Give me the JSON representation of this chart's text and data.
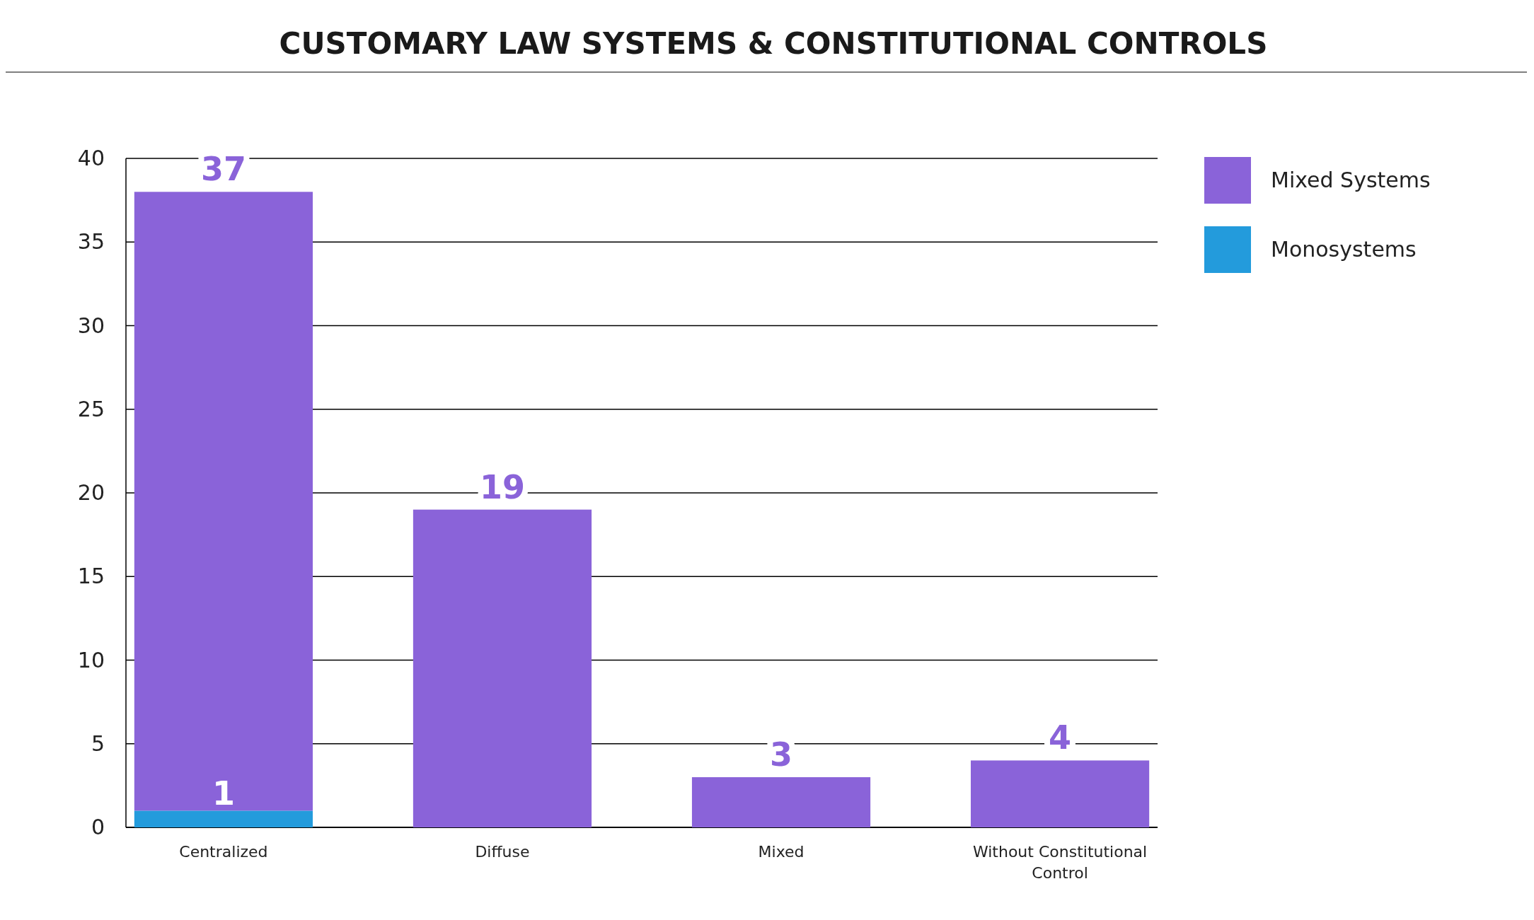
{
  "chart_data": {
    "type": "bar",
    "title": "CUSTOMARY LAW SYSTEMS & CONSTITUTIONAL CONTROLS",
    "categories": [
      "Centralized",
      "Diffuse",
      "Mixed",
      "Without Constitutional Control"
    ],
    "stacked": true,
    "series": [
      {
        "name": "Monosystems",
        "color": "#239bdc",
        "values": [
          1,
          0,
          0,
          0
        ],
        "value_labels": [
          "1",
          null,
          null,
          null
        ]
      },
      {
        "name": "Mixed Systems",
        "color": "#8a63d9",
        "values": [
          37,
          19,
          3,
          4
        ],
        "value_labels": [
          "37",
          "19",
          "3",
          "4"
        ]
      }
    ],
    "ylim": [
      0,
      40
    ],
    "yticks": [
      0,
      5,
      10,
      15,
      20,
      25,
      30,
      35,
      40
    ],
    "grid": "y",
    "legend": "top right"
  }
}
